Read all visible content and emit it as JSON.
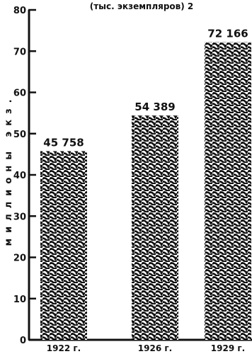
{
  "chart_data": {
    "type": "bar",
    "title": "(тыс. экземпляров) 2",
    "ylabel": "миллионы экз.",
    "categories": [
      "1922 г.",
      "1926 г.",
      "1929 г."
    ],
    "values": [
      45.758,
      54.389,
      72.166
    ],
    "data_labels": [
      "45 758",
      "54 389",
      "72 166"
    ],
    "ylim": [
      0,
      80
    ],
    "yticks": [
      0,
      10,
      20,
      30,
      40,
      50,
      60,
      70,
      80
    ],
    "ytick_labels": [
      "0",
      "10",
      "20",
      "30",
      "40",
      "50",
      "60",
      "70",
      "80"
    ],
    "grid": false,
    "bar_fill": "pattern",
    "colors": {
      "ink": "#111111",
      "background": "#ffffff"
    }
  }
}
